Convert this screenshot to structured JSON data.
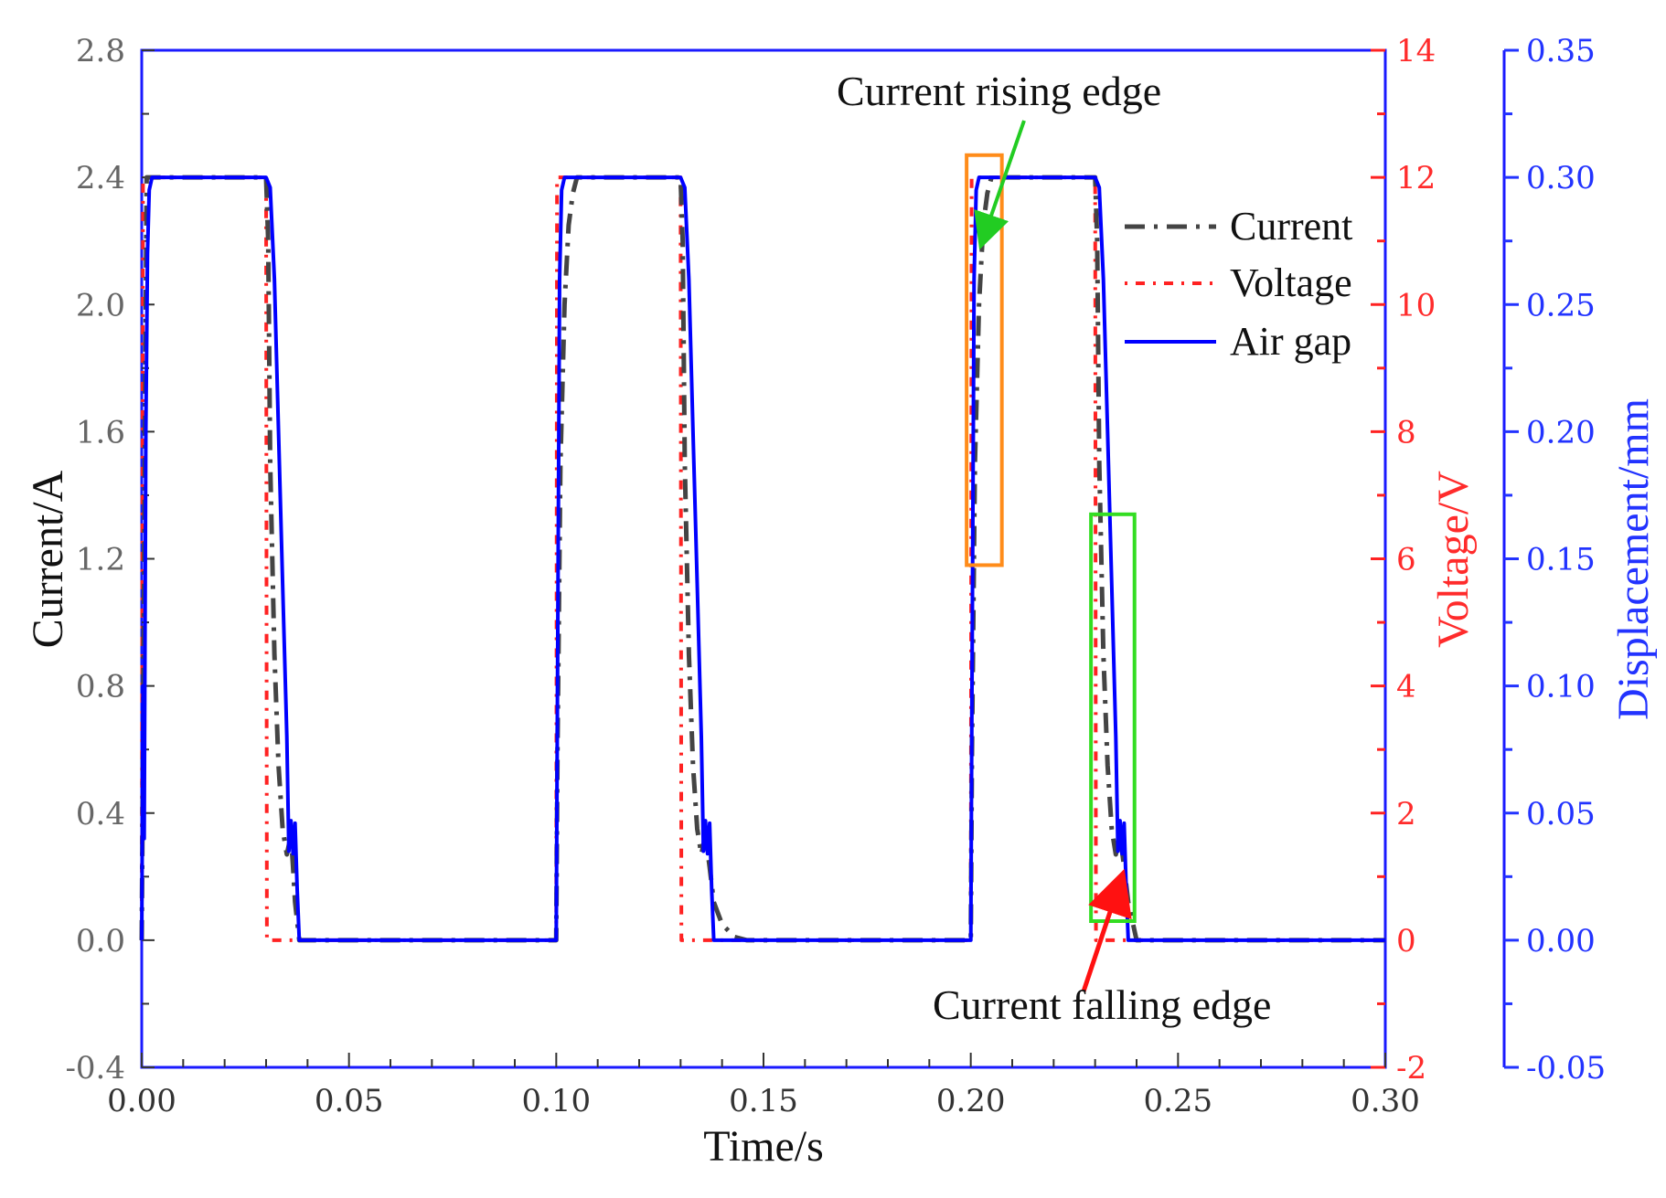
{
  "chart_data": {
    "type": "line",
    "xlabel": "Time/s",
    "ylabel": "Current/A",
    "y2label": "Voltage/V",
    "y3label": "Displacement/mm",
    "xlim": [
      0.0,
      0.3
    ],
    "ylim": [
      -0.4,
      2.8
    ],
    "y2lim": [
      -2,
      14
    ],
    "y3lim": [
      -0.05,
      0.35
    ],
    "x_ticks": [
      "0.00",
      "0.05",
      "0.10",
      "0.15",
      "0.20",
      "0.25",
      "0.30"
    ],
    "x_tick_values": [
      0.0,
      0.05,
      0.1,
      0.15,
      0.2,
      0.25,
      0.3
    ],
    "y_ticks": [
      "-0.4",
      "0.0",
      "0.4",
      "0.8",
      "1.2",
      "1.6",
      "2.0",
      "2.4",
      "2.8"
    ],
    "y_tick_values": [
      -0.4,
      0.0,
      0.4,
      0.8,
      1.2,
      1.6,
      2.0,
      2.4,
      2.8
    ],
    "y2_ticks": [
      "-2",
      "0",
      "2",
      "4",
      "6",
      "8",
      "10",
      "12",
      "14"
    ],
    "y2_tick_values": [
      -2,
      0,
      2,
      4,
      6,
      8,
      10,
      12,
      14
    ],
    "y3_ticks": [
      "-0.05",
      "0.00",
      "0.05",
      "0.10",
      "0.15",
      "0.20",
      "0.25",
      "0.30",
      "0.35"
    ],
    "y3_tick_values": [
      -0.05,
      0.0,
      0.05,
      0.1,
      0.15,
      0.2,
      0.25,
      0.3,
      0.35
    ],
    "grid": false,
    "legend_position": "top-right",
    "colors": {
      "current": "#444444",
      "voltage": "#ff2222",
      "air_gap": "#0000ff",
      "rising_box": "#ff8c1a",
      "falling_box": "#33dd22"
    },
    "series": [
      {
        "name": "Current",
        "axis": "left",
        "style": "dashed",
        "x": [
          0.0,
          0.0012,
          0.003,
          0.03,
          0.0305,
          0.031,
          0.032,
          0.033,
          0.034,
          0.035,
          0.036,
          0.0365,
          0.037,
          0.038,
          0.06,
          0.1,
          0.1003,
          0.101,
          0.102,
          0.103,
          0.104,
          0.105,
          0.13,
          0.1305,
          0.131,
          0.132,
          0.133,
          0.134,
          0.135,
          0.136,
          0.137,
          0.138,
          0.14,
          0.143,
          0.146,
          0.15,
          0.2,
          0.2003,
          0.201,
          0.202,
          0.203,
          0.204,
          0.205,
          0.23,
          0.2305,
          0.231,
          0.232,
          0.233,
          0.234,
          0.235,
          0.236,
          0.237,
          0.238,
          0.24,
          0.3
        ],
        "y": [
          0.0,
          2.4,
          2.4,
          2.4,
          2.2,
          1.5,
          0.9,
          0.55,
          0.35,
          0.27,
          0.33,
          0.23,
          0.12,
          0.0,
          0.0,
          0.0,
          0.6,
          1.5,
          2.0,
          2.25,
          2.35,
          2.4,
          2.4,
          2.2,
          1.5,
          0.9,
          0.55,
          0.35,
          0.27,
          0.33,
          0.23,
          0.12,
          0.05,
          0.01,
          0.0,
          0.0,
          0.0,
          0.6,
          1.5,
          2.0,
          2.25,
          2.35,
          2.4,
          2.4,
          2.2,
          1.5,
          0.9,
          0.55,
          0.35,
          0.27,
          0.33,
          0.23,
          0.12,
          0.0,
          0.0
        ]
      },
      {
        "name": "Voltage",
        "axis": "right1",
        "style": "dotted",
        "x": [
          0.0,
          0.0003,
          0.03,
          0.0302,
          0.1,
          0.1002,
          0.13,
          0.1302,
          0.2,
          0.2002,
          0.23,
          0.2302,
          0.3
        ],
        "y": [
          0,
          12,
          12,
          0,
          0,
          12,
          12,
          0,
          0,
          12,
          12,
          0,
          0
        ]
      },
      {
        "name": "Air gap",
        "axis": "right2",
        "style": "solid",
        "x": [
          0.0,
          0.0003,
          0.0006,
          0.001,
          0.0014,
          0.0018,
          0.0025,
          0.03,
          0.031,
          0.032,
          0.033,
          0.034,
          0.035,
          0.0355,
          0.036,
          0.0365,
          0.037,
          0.0375,
          0.038,
          0.1,
          0.1003,
          0.1008,
          0.1013,
          0.102,
          0.13,
          0.131,
          0.132,
          0.133,
          0.134,
          0.135,
          0.1355,
          0.136,
          0.1365,
          0.137,
          0.1375,
          0.138,
          0.2,
          0.2003,
          0.2008,
          0.2013,
          0.202,
          0.23,
          0.231,
          0.232,
          0.233,
          0.234,
          0.235,
          0.2355,
          0.236,
          0.2365,
          0.237,
          0.2375,
          0.238,
          0.3
        ],
        "y": [
          0.0,
          0.1,
          0.04,
          0.2,
          0.27,
          0.295,
          0.3,
          0.3,
          0.296,
          0.26,
          0.2,
          0.14,
          0.08,
          0.035,
          0.047,
          0.034,
          0.046,
          0.02,
          0.0,
          0.0,
          0.1,
          0.26,
          0.295,
          0.3,
          0.3,
          0.296,
          0.26,
          0.2,
          0.14,
          0.08,
          0.035,
          0.047,
          0.034,
          0.046,
          0.02,
          0.0,
          0.0,
          0.1,
          0.26,
          0.295,
          0.3,
          0.3,
          0.296,
          0.26,
          0.2,
          0.14,
          0.08,
          0.035,
          0.047,
          0.034,
          0.046,
          0.02,
          0.0,
          0.0
        ]
      }
    ],
    "annotations": [
      {
        "text": "Current rising edge",
        "box_x": [
          0.199,
          0.2075
        ],
        "box_y": [
          1.18,
          2.47
        ]
      },
      {
        "text": "Current falling edge",
        "box_x": [
          0.229,
          0.2395
        ],
        "box_y": [
          0.06,
          1.34
        ]
      }
    ]
  }
}
